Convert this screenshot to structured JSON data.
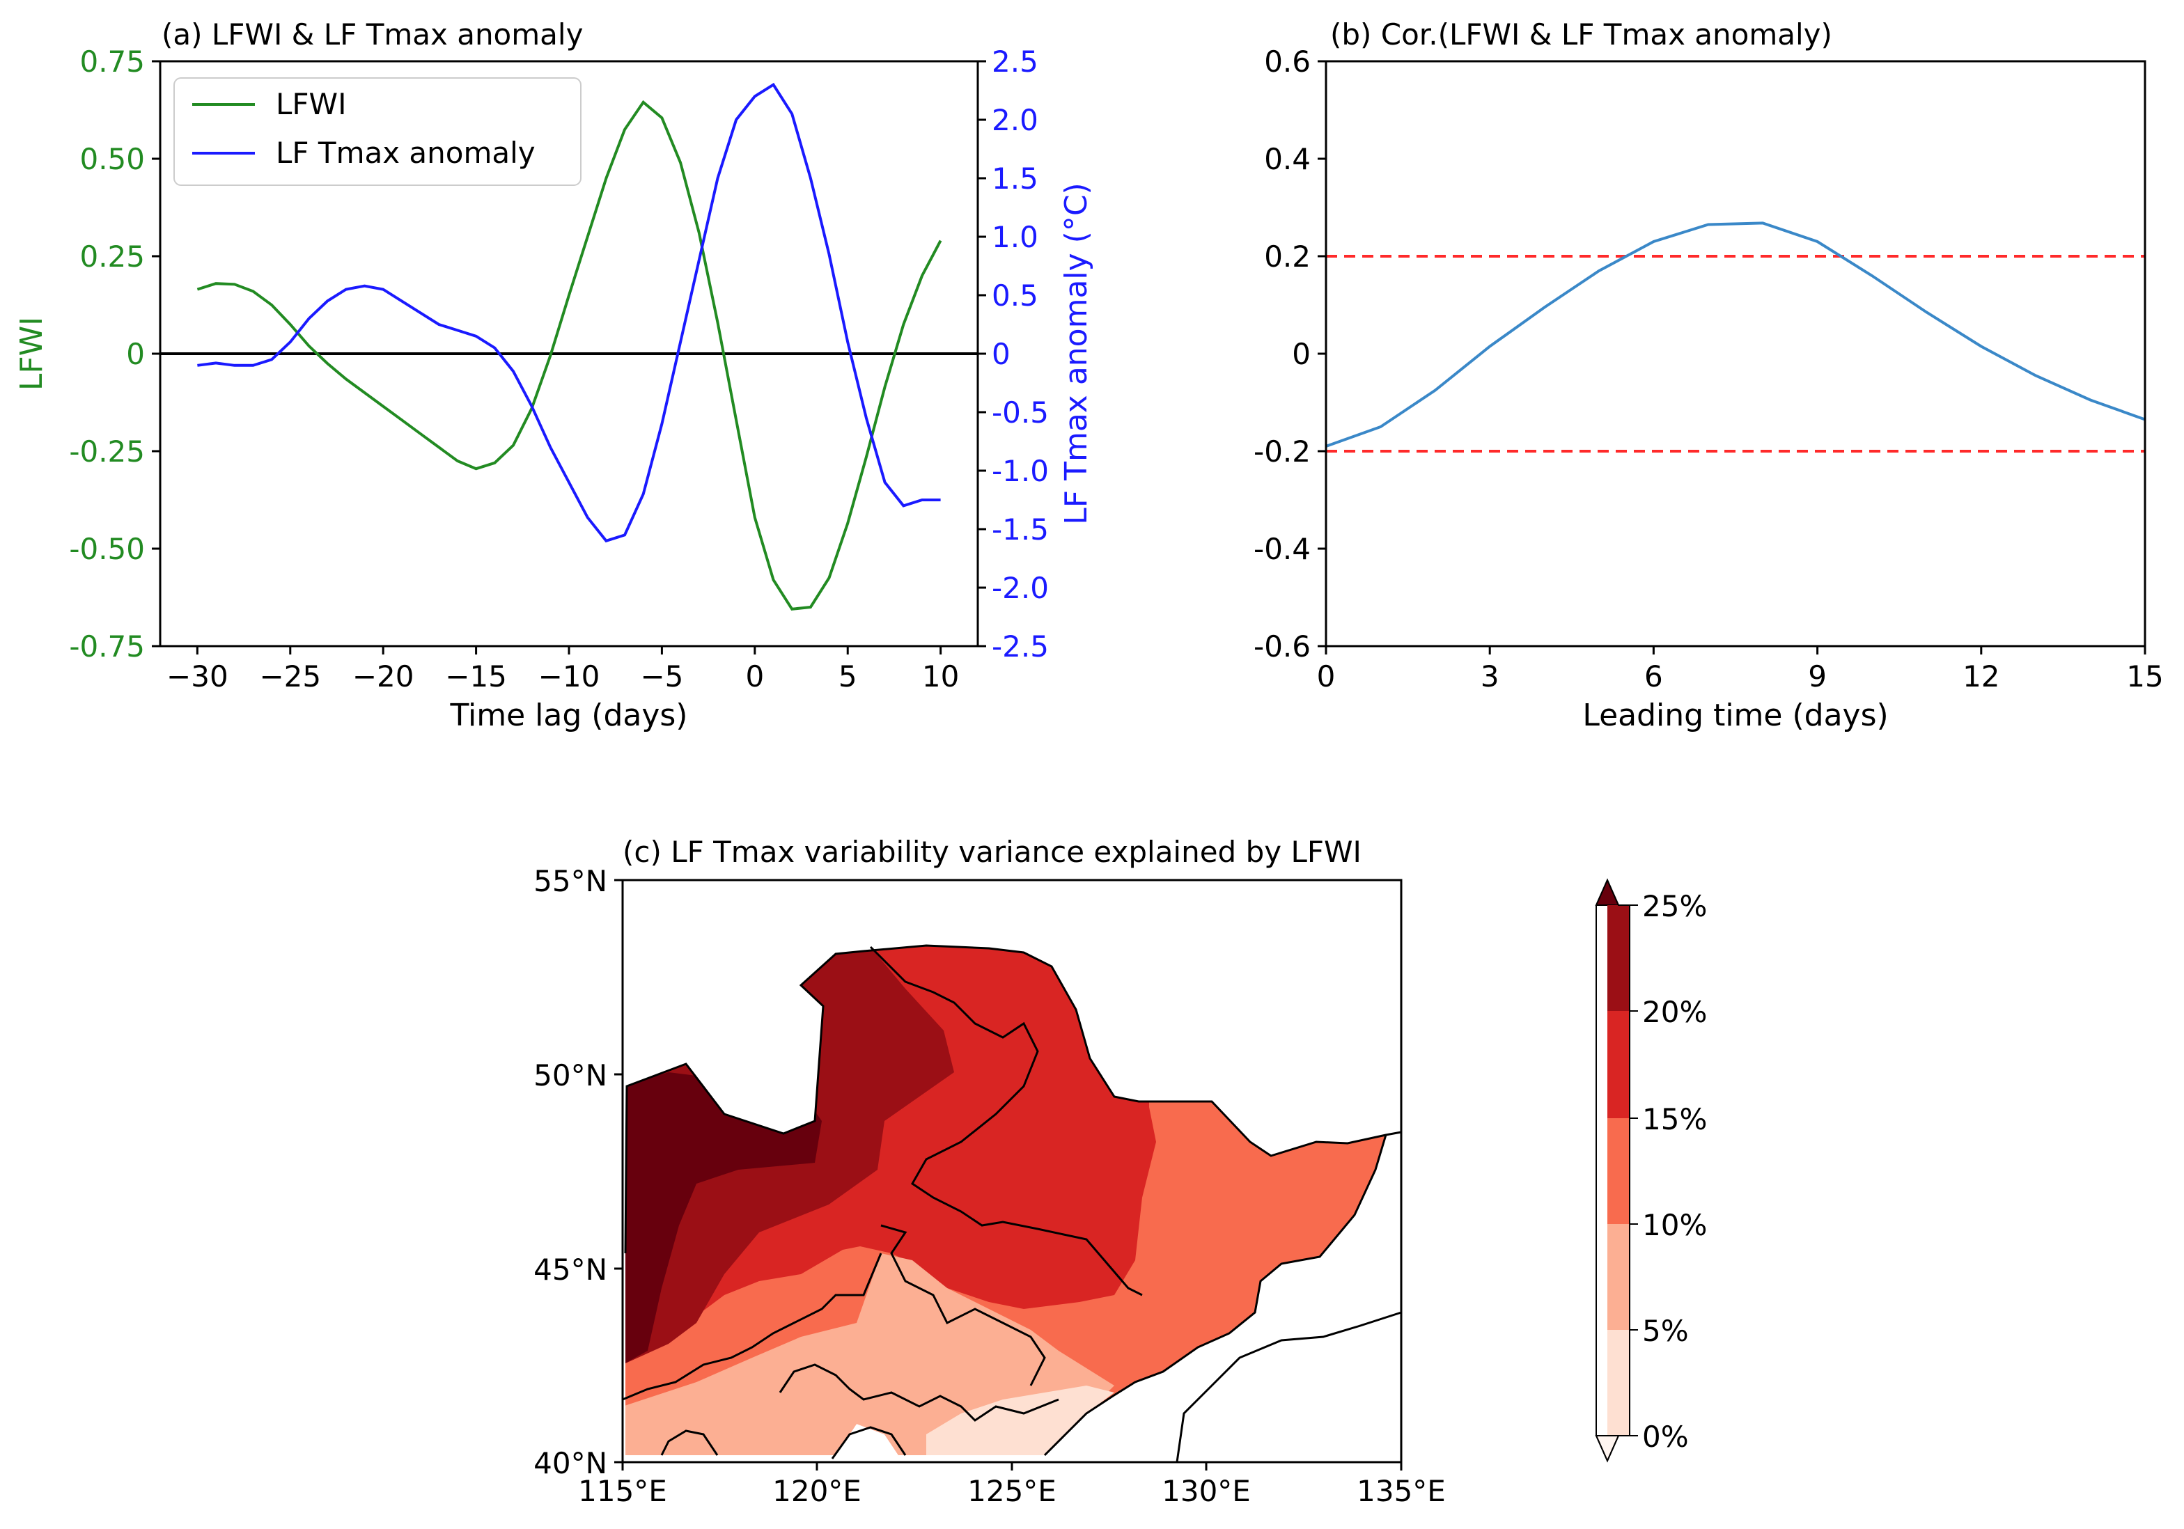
{
  "chart_data": [
    {
      "type": "line",
      "title": "(a) LFWI & LF Tmax anomaly",
      "xlabel": "Time lag (days)",
      "xlim": [
        -32,
        12
      ],
      "xticks": [
        -30,
        -25,
        -20,
        -15,
        -10,
        -5,
        0,
        5,
        10
      ],
      "xtick_labels": [
        "−30",
        "−25",
        "−20",
        "−15",
        "−10",
        "−5",
        "0",
        "5",
        "10"
      ],
      "ylabel_left": "LFWI",
      "ylim_left": [
        -0.75,
        0.75
      ],
      "yticks_left": [
        0.75,
        0.5,
        0.25,
        0,
        -0.25,
        -0.5,
        -0.75
      ],
      "ytick_labels_left": [
        "0.75",
        "0.50",
        "0.25",
        "0",
        "-0.25",
        "-0.50",
        "-0.75"
      ],
      "ylabel_right": "LF Tmax anomaly (°C)",
      "ylim_right": [
        -2.5,
        2.5
      ],
      "yticks_right": [
        2.5,
        2.0,
        1.5,
        1.0,
        0.5,
        0,
        -0.5,
        -1.0,
        -1.5,
        -2.0,
        -2.5
      ],
      "ytick_labels_right": [
        "2.5",
        "2.0",
        "1.5",
        "1.0",
        "0.5",
        "0",
        "-0.5",
        "-1.0",
        "-1.5",
        "-2.0",
        "-2.5"
      ],
      "zero_line": 0,
      "legend_position": "top-left",
      "x": [
        -30,
        -29,
        -28,
        -27,
        -26,
        -25,
        -24,
        -23,
        -22,
        -21,
        -20,
        -19,
        -18,
        -17,
        -16,
        -15,
        -14,
        -13,
        -12,
        -11,
        -10,
        -9,
        -8,
        -7,
        -6,
        -5,
        -4,
        -3,
        -2,
        -1,
        0,
        1,
        2,
        3,
        4,
        5,
        6,
        7,
        8,
        9,
        10
      ],
      "series": [
        {
          "name": "LFWI",
          "axis": "left",
          "color": "#228b22",
          "values": [
            0.165,
            0.18,
            0.178,
            0.16,
            0.125,
            0.075,
            0.02,
            -0.025,
            -0.065,
            -0.1,
            -0.135,
            -0.17,
            -0.205,
            -0.24,
            -0.275,
            -0.295,
            -0.28,
            -0.235,
            -0.14,
            -0.005,
            0.15,
            0.3,
            0.45,
            0.575,
            0.645,
            0.605,
            0.49,
            0.31,
            0.08,
            -0.17,
            -0.42,
            -0.58,
            -0.655,
            -0.65,
            -0.575,
            -0.435,
            -0.265,
            -0.085,
            0.075,
            0.2,
            0.29
          ]
        },
        {
          "name": "LF Tmax anomaly",
          "axis": "right",
          "color": "#1a1aff",
          "values": [
            -0.1,
            -0.08,
            -0.1,
            -0.1,
            -0.05,
            0.1,
            0.3,
            0.45,
            0.55,
            0.58,
            0.55,
            0.45,
            0.35,
            0.25,
            0.2,
            0.15,
            0.05,
            -0.15,
            -0.45,
            -0.8,
            -1.1,
            -1.4,
            -1.6,
            -1.55,
            -1.2,
            -0.6,
            0.1,
            0.8,
            1.5,
            2.0,
            2.2,
            2.3,
            2.05,
            1.5,
            0.85,
            0.1,
            -0.55,
            -1.1,
            -1.3,
            -1.25,
            -1.25
          ]
        }
      ]
    },
    {
      "type": "line",
      "title": "(b) Cor.(LFWI & LF Tmax anomaly)",
      "xlabel": "Leading time (days)",
      "xlim": [
        0,
        15
      ],
      "xticks": [
        0,
        3,
        6,
        9,
        12,
        15
      ],
      "xtick_labels": [
        "0",
        "3",
        "6",
        "9",
        "12",
        "15"
      ],
      "ylim": [
        -0.6,
        0.6
      ],
      "yticks": [
        0.6,
        0.4,
        0.2,
        0,
        -0.2,
        -0.4,
        -0.6
      ],
      "ytick_labels": [
        "0.6",
        "0.4",
        "0.2",
        "0",
        "-0.2",
        "-0.4",
        "-0.6"
      ],
      "reference_lines": [
        0.2,
        -0.2
      ],
      "reference_color": "#ff2a2a",
      "series": [
        {
          "name": "Correlation",
          "color": "#3a88c8",
          "x": [
            0,
            1,
            2,
            3,
            4,
            5,
            6,
            7,
            8,
            9,
            10,
            11,
            12,
            13,
            14,
            15
          ],
          "values": [
            -0.19,
            -0.15,
            -0.075,
            0.015,
            0.095,
            0.17,
            0.23,
            0.265,
            0.268,
            0.23,
            0.16,
            0.085,
            0.015,
            -0.045,
            -0.095,
            -0.135
          ]
        }
      ]
    },
    {
      "type": "map",
      "title": "(c) LF Tmax variability variance explained by LFWI",
      "lon_range": [
        115,
        135
      ],
      "lat_range": [
        40,
        55
      ],
      "xtick_labels": [
        "115°E",
        "120°E",
        "125°E",
        "130°E",
        "135°E"
      ],
      "ytick_labels": [
        "55°N",
        "50°N",
        "45°N",
        "40°N"
      ],
      "colorbar": {
        "levels": [
          "25%",
          "20%",
          "15%",
          "10%",
          "5%",
          "0%"
        ],
        "colors": [
          "#fee0d2",
          "#fcaf93",
          "#f86b4e",
          "#d92523",
          "#9b0f15",
          "#67000d"
        ],
        "extend": "both"
      }
    }
  ]
}
